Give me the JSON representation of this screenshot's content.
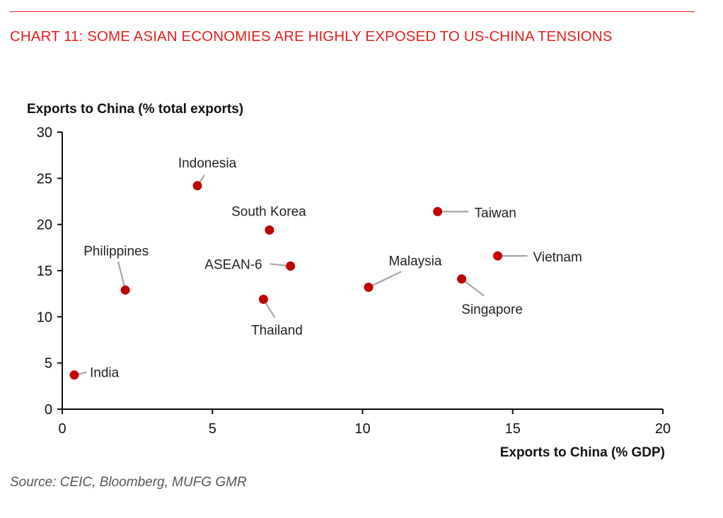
{
  "title": "CHART 11: SOME ASIAN ECONOMIES ARE HIGHLY EXPOSED TO US-CHINA TENSIONS",
  "source": "Source: CEIC, Bloomberg, MUFG GMR",
  "colors": {
    "title": "#e0201b",
    "marker": "#c00000",
    "axis": "#111111",
    "leader": "#a6a6a6"
  },
  "chart_data": {
    "type": "scatter",
    "title": "CHART 11: SOME ASIAN ECONOMIES ARE HIGHLY EXPOSED TO US-CHINA TENSIONS",
    "xlabel": "Exports to China (% GDP)",
    "ylabel": "Exports to China (% total exports)",
    "xlim": [
      0,
      20
    ],
    "ylim": [
      0,
      30
    ],
    "xticks": [
      0,
      5,
      10,
      15,
      20
    ],
    "yticks": [
      0,
      5,
      10,
      15,
      20,
      25,
      30
    ],
    "grid": false,
    "legend": "none",
    "points": [
      {
        "label": "Indonesia",
        "x": 4.5,
        "y": 24.2
      },
      {
        "label": "South Korea",
        "x": 6.9,
        "y": 19.4
      },
      {
        "label": "Taiwan",
        "x": 12.5,
        "y": 21.4
      },
      {
        "label": "Vietnam",
        "x": 14.5,
        "y": 16.6
      },
      {
        "label": "Philippines",
        "x": 2.1,
        "y": 12.9
      },
      {
        "label": "ASEAN-6",
        "x": 7.6,
        "y": 15.5
      },
      {
        "label": "Malaysia",
        "x": 10.2,
        "y": 13.2
      },
      {
        "label": "Singapore",
        "x": 13.3,
        "y": 14.1
      },
      {
        "label": "Thailand",
        "x": 6.7,
        "y": 11.9
      },
      {
        "label": "India",
        "x": 0.4,
        "y": 3.7
      }
    ]
  }
}
